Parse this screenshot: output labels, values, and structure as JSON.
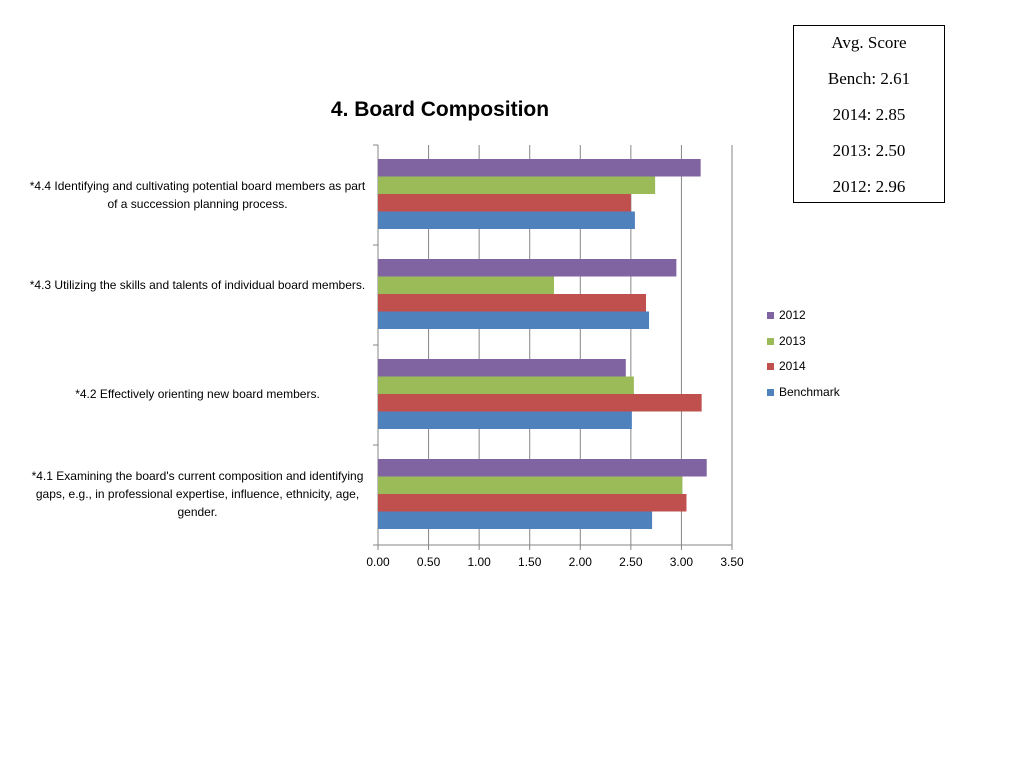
{
  "chart_data": {
    "type": "bar",
    "orientation": "horizontal",
    "title": "4. Board Composition",
    "categories": [
      "*4.4 Identifying and cultivating potential board members as part of a succession planning process.",
      "*4.3 Utilizing the skills and talents of individual board members.",
      "*4.2 Effectively orienting new board members.",
      "*4.1 Examining the board's current composition and identifying gaps, e.g., in professional expertise, influence, ethnicity, age, gender."
    ],
    "series": [
      {
        "name": "2012",
        "color": "#8064a2",
        "values": [
          3.19,
          2.95,
          2.45,
          3.25
        ]
      },
      {
        "name": "2013",
        "color": "#9bbb59",
        "values": [
          2.74,
          1.74,
          2.53,
          3.01
        ]
      },
      {
        "name": "2014",
        "color": "#c0504d",
        "values": [
          2.5,
          2.65,
          3.2,
          3.05
        ]
      },
      {
        "name": "Benchmark",
        "color": "#4f81bd",
        "values": [
          2.54,
          2.68,
          2.51,
          2.71
        ]
      }
    ],
    "xlim": [
      0,
      3.5
    ],
    "x_ticks": [
      "0.00",
      "0.50",
      "1.00",
      "1.50",
      "2.00",
      "2.50",
      "3.00",
      "3.50"
    ],
    "grid": "vertical",
    "legend_position": "right"
  },
  "avg_box": {
    "lines": [
      "Avg. Score",
      "Bench: 2.61",
      "2014: 2.85",
      "2013: 2.50",
      "2012: 2.96"
    ]
  }
}
